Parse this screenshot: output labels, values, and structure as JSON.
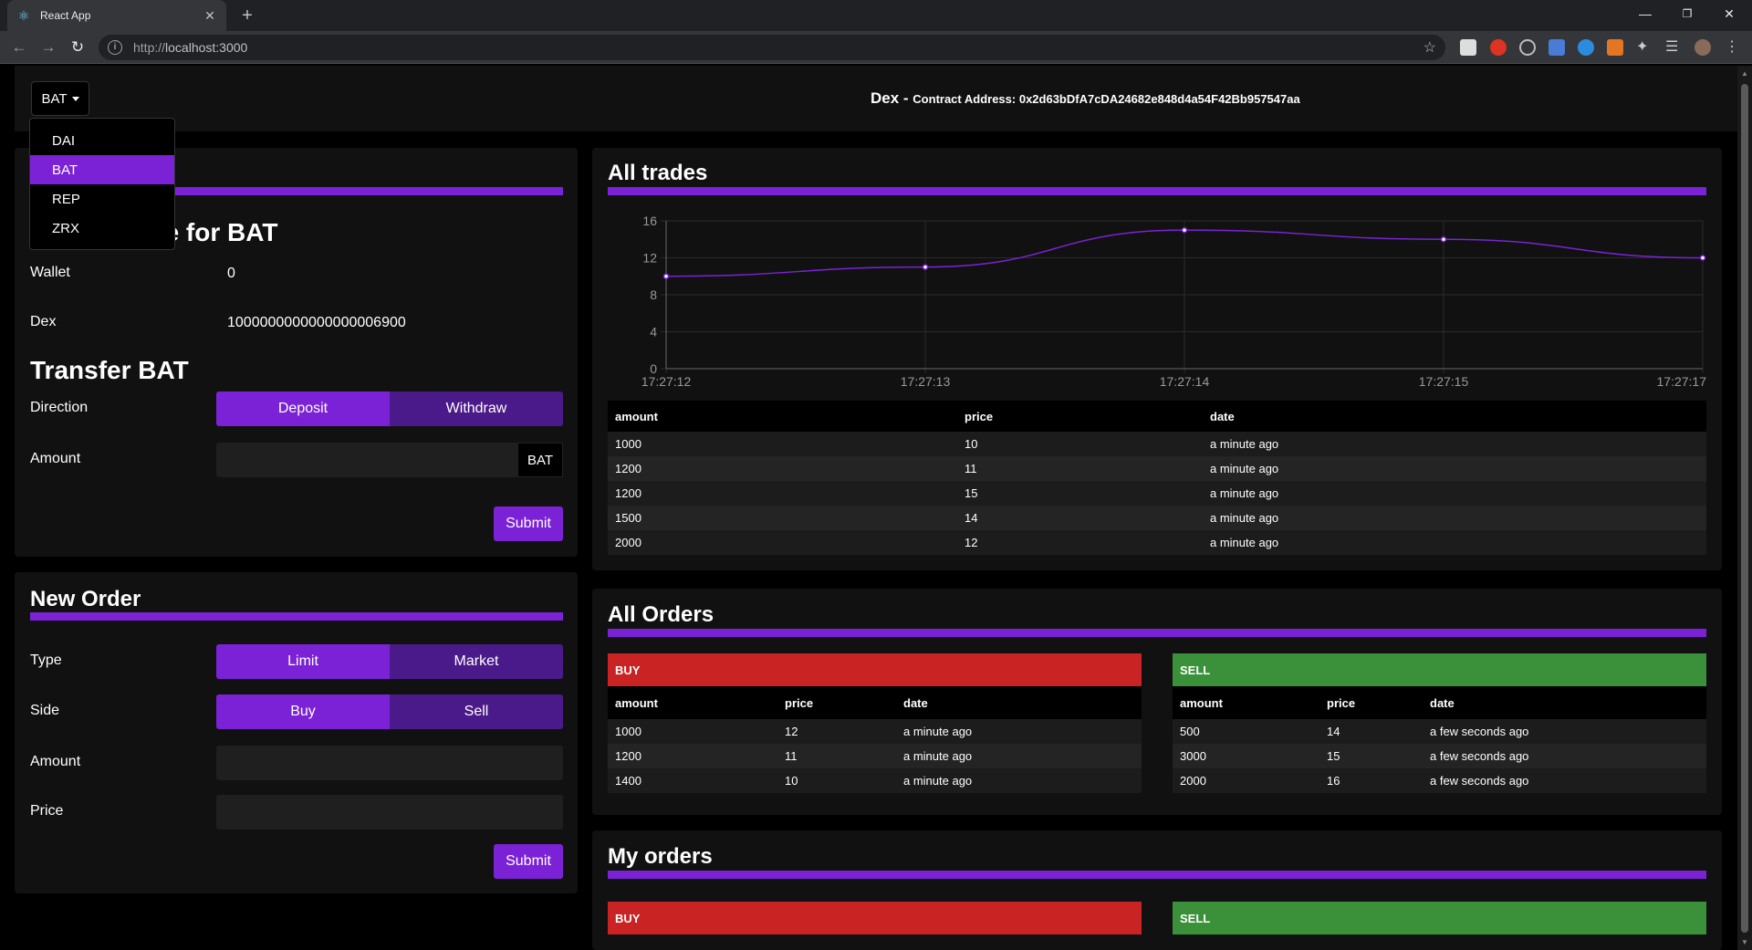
{
  "browser": {
    "tab_title": "React App",
    "tab_close": "✕",
    "new_tab": "+",
    "url_scheme": "http://",
    "url_host": "localhost:3000",
    "window_controls": {
      "minimize": "—",
      "restore": "❐",
      "close": "✕"
    }
  },
  "header": {
    "token_selected": "BAT",
    "title": "Dex - ",
    "contract_label": "Contract Address: 0x2d63bDfA7cDA24682e848d4a54F42Bb957547aa"
  },
  "dropdown": {
    "items": [
      {
        "label": "DAI",
        "active": false
      },
      {
        "label": "BAT",
        "active": true
      },
      {
        "label": "REP",
        "active": false
      },
      {
        "label": "ZRX",
        "active": false
      }
    ]
  },
  "wallet": {
    "title_visible": "ce for BAT",
    "wallet_label": "Wallet",
    "wallet_value": "0",
    "dex_label": "Dex",
    "dex_value": "1000000000000000006900",
    "transfer_title": "Transfer BAT",
    "direction_label": "Direction",
    "deposit": "Deposit",
    "withdraw": "Withdraw",
    "amount_label": "Amount",
    "amount_addon": "BAT",
    "submit": "Submit"
  },
  "new_order": {
    "title": "New Order",
    "type_label": "Type",
    "limit": "Limit",
    "market": "Market",
    "side_label": "Side",
    "buy": "Buy",
    "sell": "Sell",
    "amount_label": "Amount",
    "price_label": "Price",
    "submit": "Submit"
  },
  "all_trades": {
    "title": "All trades",
    "columns": [
      "amount",
      "price",
      "date"
    ],
    "rows": [
      [
        "1000",
        "10",
        "a minute ago"
      ],
      [
        "1200",
        "11",
        "a minute ago"
      ],
      [
        "1200",
        "15",
        "a minute ago"
      ],
      [
        "1500",
        "14",
        "a minute ago"
      ],
      [
        "2000",
        "12",
        "a minute ago"
      ]
    ]
  },
  "chart_data": {
    "type": "line",
    "x": [
      "17:27:12",
      "17:27:13",
      "17:27:14",
      "17:27:15",
      "17:27:17"
    ],
    "values": [
      10,
      11,
      15,
      14,
      12
    ],
    "yticks": [
      "0",
      "4",
      "8",
      "12",
      "16"
    ],
    "ylim": [
      0,
      16
    ],
    "grid": true,
    "color": "#7b22d6"
  },
  "all_orders": {
    "title": "All Orders",
    "buy": {
      "label": "BUY",
      "color": "#c92323",
      "columns": [
        "amount",
        "price",
        "date"
      ],
      "rows": [
        [
          "1000",
          "12",
          "a minute ago"
        ],
        [
          "1200",
          "11",
          "a minute ago"
        ],
        [
          "1400",
          "10",
          "a minute ago"
        ]
      ]
    },
    "sell": {
      "label": "SELL",
      "color": "#3a913a",
      "columns": [
        "amount",
        "price",
        "date"
      ],
      "rows": [
        [
          "500",
          "14",
          "a few seconds ago"
        ],
        [
          "3000",
          "15",
          "a few seconds ago"
        ],
        [
          "2000",
          "16",
          "a few seconds ago"
        ]
      ]
    }
  },
  "my_orders": {
    "title": "My orders",
    "buy_label": "BUY",
    "sell_label": "SELL"
  }
}
